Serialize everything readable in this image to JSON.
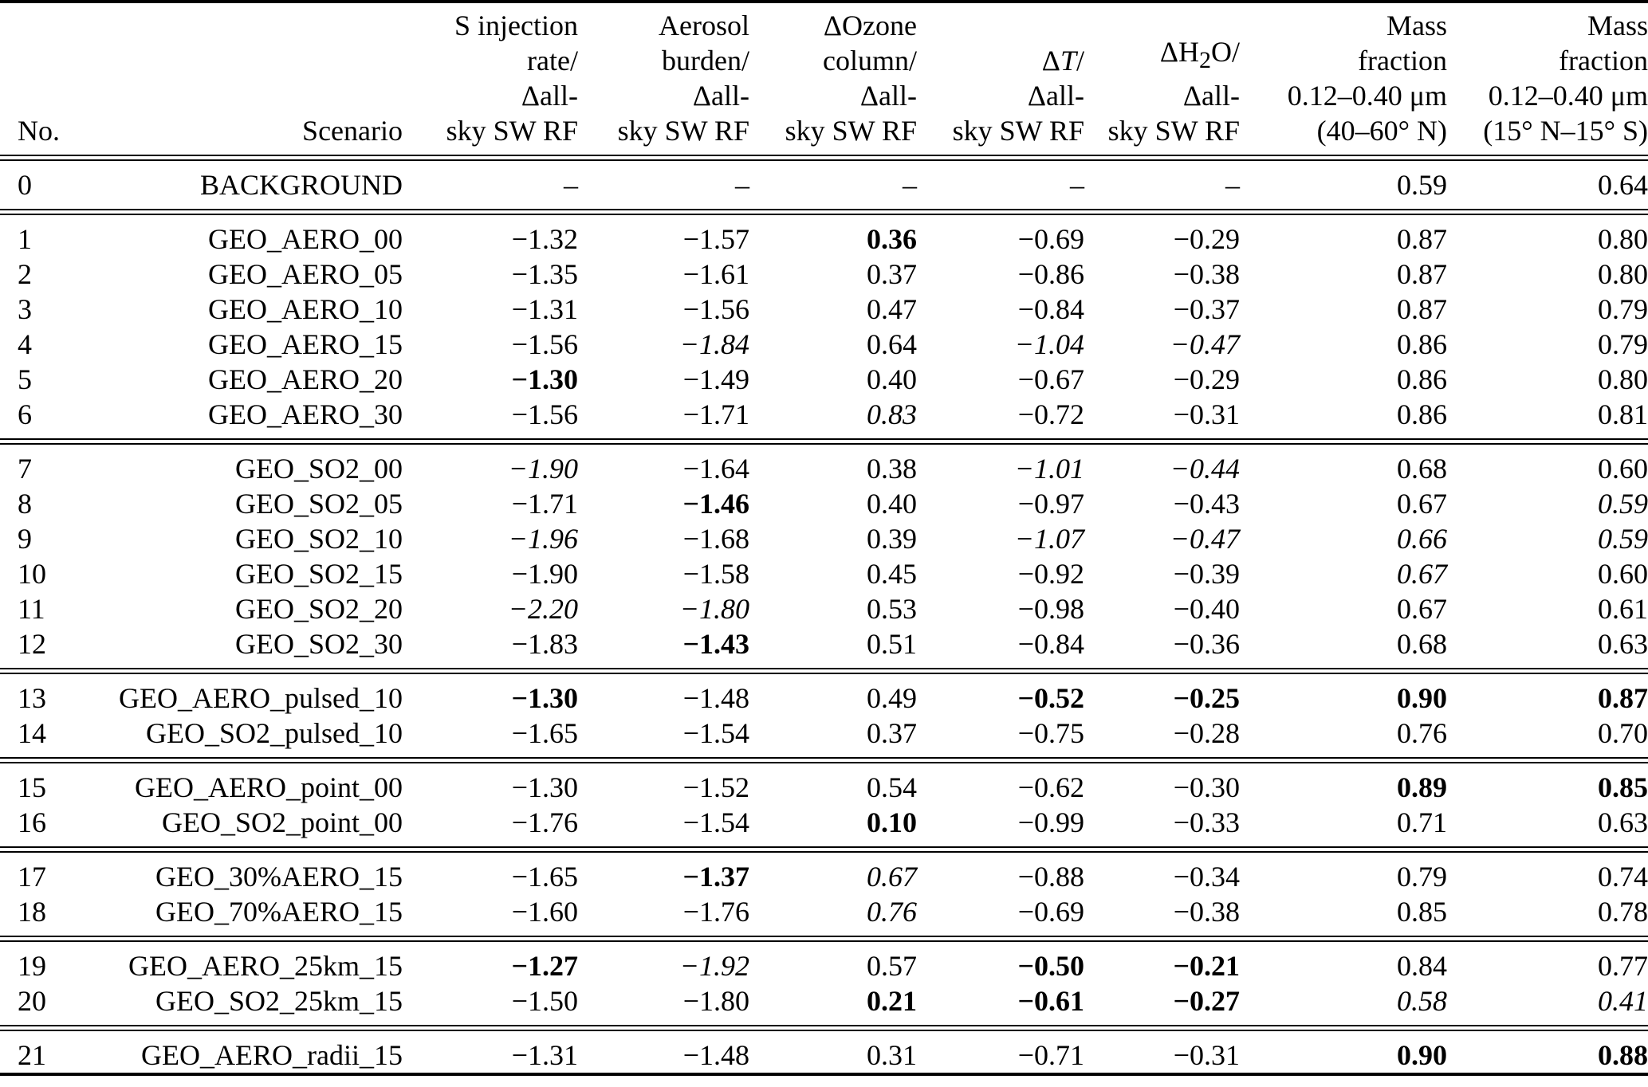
{
  "table": {
    "columns": [
      {
        "id": "no",
        "align": "L",
        "segments": [
          {
            "t": "No."
          }
        ]
      },
      {
        "id": "scenario",
        "align": "R",
        "segments": [
          {
            "t": "Scenario"
          }
        ]
      },
      {
        "id": "s-injection-rate",
        "align": "R",
        "segments": [
          {
            "t": "S injection\nrate/\nΔall-\nsky SW RF"
          }
        ]
      },
      {
        "id": "aerosol-burden",
        "align": "R",
        "segments": [
          {
            "t": "Aerosol\nburden/\nΔall-\nsky SW RF"
          }
        ]
      },
      {
        "id": "ozone-column",
        "align": "R",
        "segments": [
          {
            "t": "ΔOzone\ncolumn/\nΔall-\nsky SW RF"
          }
        ]
      },
      {
        "id": "delta-t",
        "align": "R",
        "segments": [
          {
            "t": "Δ"
          },
          {
            "t": "T",
            "i": 1
          },
          {
            "t": "/\nΔall-\nsky SW RF"
          }
        ]
      },
      {
        "id": "delta-h2o",
        "align": "R",
        "segments": [
          {
            "t": "ΔH"
          },
          {
            "t": "2",
            "sub": 1
          },
          {
            "t": "O/\nΔall-\nsky SW RF"
          }
        ]
      },
      {
        "id": "mass-fraction-40-60n",
        "align": "R",
        "segments": [
          {
            "t": "Mass\nfraction\n0.12–0.40 μm\n(40–60° N)"
          }
        ]
      },
      {
        "id": "mass-fraction-15n-15s",
        "align": "R",
        "segments": [
          {
            "t": "Mass\nfraction\n0.12–0.40 μm\n(15° N–15° S)"
          }
        ]
      }
    ],
    "groups": [
      [
        {
          "no": "0",
          "scenario": "BACKGROUND",
          "values": [
            {
              "v": "–"
            },
            {
              "v": "–"
            },
            {
              "v": "–"
            },
            {
              "v": "–"
            },
            {
              "v": "–"
            },
            {
              "v": "0.59"
            },
            {
              "v": "0.64"
            }
          ]
        }
      ],
      [
        {
          "no": "1",
          "scenario": "GEO_AERO_00",
          "values": [
            {
              "v": "−1.32"
            },
            {
              "v": "−1.57"
            },
            {
              "v": "0.36",
              "st": "b"
            },
            {
              "v": "−0.69"
            },
            {
              "v": "−0.29"
            },
            {
              "v": "0.87"
            },
            {
              "v": "0.80"
            }
          ]
        },
        {
          "no": "2",
          "scenario": "GEO_AERO_05",
          "values": [
            {
              "v": "−1.35"
            },
            {
              "v": "−1.61"
            },
            {
              "v": "0.37"
            },
            {
              "v": "−0.86"
            },
            {
              "v": "−0.38"
            },
            {
              "v": "0.87"
            },
            {
              "v": "0.80"
            }
          ]
        },
        {
          "no": "3",
          "scenario": "GEO_AERO_10",
          "values": [
            {
              "v": "−1.31"
            },
            {
              "v": "−1.56"
            },
            {
              "v": "0.47"
            },
            {
              "v": "−0.84"
            },
            {
              "v": "−0.37"
            },
            {
              "v": "0.87"
            },
            {
              "v": "0.79"
            }
          ]
        },
        {
          "no": "4",
          "scenario": "GEO_AERO_15",
          "values": [
            {
              "v": "−1.56"
            },
            {
              "v": "−1.84",
              "st": "i"
            },
            {
              "v": "0.64"
            },
            {
              "v": "−1.04",
              "st": "i"
            },
            {
              "v": "−0.47",
              "st": "i"
            },
            {
              "v": "0.86"
            },
            {
              "v": "0.79"
            }
          ]
        },
        {
          "no": "5",
          "scenario": "GEO_AERO_20",
          "values": [
            {
              "v": "−1.30",
              "st": "b"
            },
            {
              "v": "−1.49"
            },
            {
              "v": "0.40"
            },
            {
              "v": "−0.67"
            },
            {
              "v": "−0.29"
            },
            {
              "v": "0.86"
            },
            {
              "v": "0.80"
            }
          ]
        },
        {
          "no": "6",
          "scenario": "GEO_AERO_30",
          "values": [
            {
              "v": "−1.56"
            },
            {
              "v": "−1.71"
            },
            {
              "v": "0.83",
              "st": "i"
            },
            {
              "v": "−0.72"
            },
            {
              "v": "−0.31"
            },
            {
              "v": "0.86"
            },
            {
              "v": "0.81"
            }
          ]
        }
      ],
      [
        {
          "no": "7",
          "scenario": "GEO_SO2_00",
          "values": [
            {
              "v": "−1.90",
              "st": "i"
            },
            {
              "v": "−1.64"
            },
            {
              "v": "0.38"
            },
            {
              "v": "−1.01",
              "st": "i"
            },
            {
              "v": "−0.44",
              "st": "i"
            },
            {
              "v": "0.68"
            },
            {
              "v": "0.60"
            }
          ]
        },
        {
          "no": "8",
          "scenario": "GEO_SO2_05",
          "values": [
            {
              "v": "−1.71"
            },
            {
              "v": "−1.46",
              "st": "b"
            },
            {
              "v": "0.40"
            },
            {
              "v": "−0.97"
            },
            {
              "v": "−0.43"
            },
            {
              "v": "0.67"
            },
            {
              "v": "0.59",
              "st": "i"
            }
          ]
        },
        {
          "no": "9",
          "scenario": "GEO_SO2_10",
          "values": [
            {
              "v": "−1.96",
              "st": "i"
            },
            {
              "v": "−1.68"
            },
            {
              "v": "0.39"
            },
            {
              "v": "−1.07",
              "st": "i"
            },
            {
              "v": "−0.47",
              "st": "i"
            },
            {
              "v": "0.66",
              "st": "i"
            },
            {
              "v": "0.59",
              "st": "i"
            }
          ]
        },
        {
          "no": "10",
          "scenario": "GEO_SO2_15",
          "values": [
            {
              "v": "−1.90"
            },
            {
              "v": "−1.58"
            },
            {
              "v": "0.45"
            },
            {
              "v": "−0.92"
            },
            {
              "v": "−0.39"
            },
            {
              "v": "0.67",
              "st": "i"
            },
            {
              "v": "0.60"
            }
          ]
        },
        {
          "no": "11",
          "scenario": "GEO_SO2_20",
          "values": [
            {
              "v": "−2.20",
              "st": "i"
            },
            {
              "v": "−1.80",
              "st": "i"
            },
            {
              "v": "0.53"
            },
            {
              "v": "−0.98"
            },
            {
              "v": "−0.40"
            },
            {
              "v": "0.67"
            },
            {
              "v": "0.61"
            }
          ]
        },
        {
          "no": "12",
          "scenario": "GEO_SO2_30",
          "values": [
            {
              "v": "−1.83"
            },
            {
              "v": "−1.43",
              "st": "b"
            },
            {
              "v": "0.51"
            },
            {
              "v": "−0.84"
            },
            {
              "v": "−0.36"
            },
            {
              "v": "0.68"
            },
            {
              "v": "0.63"
            }
          ]
        }
      ],
      [
        {
          "no": "13",
          "scenario": "GEO_AERO_pulsed_10",
          "values": [
            {
              "v": "−1.30",
              "st": "b"
            },
            {
              "v": "−1.48"
            },
            {
              "v": "0.49"
            },
            {
              "v": "−0.52",
              "st": "b"
            },
            {
              "v": "−0.25",
              "st": "b"
            },
            {
              "v": "0.90",
              "st": "b"
            },
            {
              "v": "0.87",
              "st": "b"
            }
          ]
        },
        {
          "no": "14",
          "scenario": "GEO_SO2_pulsed_10",
          "values": [
            {
              "v": "−1.65"
            },
            {
              "v": "−1.54"
            },
            {
              "v": "0.37"
            },
            {
              "v": "−0.75"
            },
            {
              "v": "−0.28"
            },
            {
              "v": "0.76"
            },
            {
              "v": "0.70"
            }
          ]
        }
      ],
      [
        {
          "no": "15",
          "scenario": "GEO_AERO_point_00",
          "values": [
            {
              "v": "−1.30"
            },
            {
              "v": "−1.52"
            },
            {
              "v": "0.54"
            },
            {
              "v": "−0.62"
            },
            {
              "v": "−0.30"
            },
            {
              "v": "0.89",
              "st": "b"
            },
            {
              "v": "0.85",
              "st": "b"
            }
          ]
        },
        {
          "no": "16",
          "scenario": "GEO_SO2_point_00",
          "values": [
            {
              "v": "−1.76"
            },
            {
              "v": "−1.54"
            },
            {
              "v": "0.10",
              "st": "b"
            },
            {
              "v": "−0.99"
            },
            {
              "v": "−0.33"
            },
            {
              "v": "0.71"
            },
            {
              "v": "0.63"
            }
          ]
        }
      ],
      [
        {
          "no": "17",
          "scenario": "GEO_30%AERO_15",
          "values": [
            {
              "v": "−1.65"
            },
            {
              "v": "−1.37",
              "st": "b"
            },
            {
              "v": "0.67",
              "st": "i"
            },
            {
              "v": "−0.88"
            },
            {
              "v": "−0.34"
            },
            {
              "v": "0.79"
            },
            {
              "v": "0.74"
            }
          ]
        },
        {
          "no": "18",
          "scenario": "GEO_70%AERO_15",
          "values": [
            {
              "v": "−1.60"
            },
            {
              "v": "−1.76"
            },
            {
              "v": "0.76",
              "st": "i"
            },
            {
              "v": "−0.69"
            },
            {
              "v": "−0.38"
            },
            {
              "v": "0.85"
            },
            {
              "v": "0.78"
            }
          ]
        }
      ],
      [
        {
          "no": "19",
          "scenario": "GEO_AERO_25km_15",
          "values": [
            {
              "v": "−1.27",
              "st": "b"
            },
            {
              "v": "−1.92",
              "st": "i"
            },
            {
              "v": "0.57"
            },
            {
              "v": "−0.50",
              "st": "b"
            },
            {
              "v": "−0.21",
              "st": "b"
            },
            {
              "v": "0.84"
            },
            {
              "v": "0.77"
            }
          ]
        },
        {
          "no": "20",
          "scenario": "GEO_SO2_25km_15",
          "values": [
            {
              "v": "−1.50"
            },
            {
              "v": "−1.80"
            },
            {
              "v": "0.21",
              "st": "b"
            },
            {
              "v": "−0.61",
              "st": "b"
            },
            {
              "v": "−0.27",
              "st": "b"
            },
            {
              "v": "0.58",
              "st": "i"
            },
            {
              "v": "0.41",
              "st": "i"
            }
          ]
        }
      ],
      [
        {
          "no": "21",
          "scenario": "GEO_AERO_radii_15",
          "values": [
            {
              "v": "−1.31"
            },
            {
              "v": "−1.48"
            },
            {
              "v": "0.31"
            },
            {
              "v": "−0.71"
            },
            {
              "v": "−0.31"
            },
            {
              "v": "0.90",
              "st": "b"
            },
            {
              "v": "0.88",
              "st": "b"
            }
          ]
        }
      ]
    ]
  }
}
